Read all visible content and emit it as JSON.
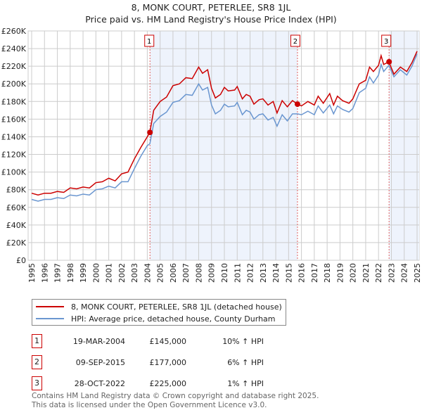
{
  "title": "8, MONK COURT, PETERLEE, SR8 1JL",
  "subtitle": "Price paid vs. HM Land Registry's House Price Index (HPI)",
  "chart_data": {
    "type": "line",
    "xlim": [
      1995,
      2025
    ],
    "ylim": [
      0,
      260000
    ],
    "x_ticks": [
      "1995",
      "1996",
      "1997",
      "1998",
      "1999",
      "2000",
      "2001",
      "2002",
      "2003",
      "2004",
      "2005",
      "2006",
      "2007",
      "2008",
      "2009",
      "2010",
      "2011",
      "2012",
      "2013",
      "2014",
      "2015",
      "2016",
      "2017",
      "2018",
      "2019",
      "2020",
      "2021",
      "2022",
      "2023",
      "2024",
      "2025"
    ],
    "y_ticks": [
      "£0",
      "£20K",
      "£40K",
      "£60K",
      "£80K",
      "£100K",
      "£120K",
      "£140K",
      "£160K",
      "£180K",
      "£200K",
      "£220K",
      "£240K",
      "£260K"
    ],
    "grid": true,
    "series": [
      {
        "name": "8, MONK COURT, PETERLEE, SR8 1JL (detached house)",
        "color": "#cc0000",
        "x": [
          1995,
          1995.5,
          1996,
          1996.5,
          1997,
          1997.5,
          1998,
          1998.5,
          1999,
          1999.5,
          2000,
          2000.5,
          2001,
          2001.5,
          2002,
          2002.5,
          2003,
          2003.5,
          2004,
          2004.2,
          2004.5,
          2005,
          2005.5,
          2006,
          2006.5,
          2007,
          2007.5,
          2008,
          2008.3,
          2008.7,
          2009,
          2009.3,
          2009.7,
          2010,
          2010.3,
          2010.8,
          2011,
          2011.4,
          2011.7,
          2012,
          2012.3,
          2012.7,
          2013,
          2013.4,
          2013.8,
          2014.1,
          2014.5,
          2014.9,
          2015.3,
          2015.7,
          2016,
          2016.5,
          2017,
          2017.3,
          2017.7,
          2018.2,
          2018.5,
          2018.8,
          2019.2,
          2019.7,
          2020,
          2020.5,
          2021,
          2021.3,
          2021.6,
          2022,
          2022.2,
          2022.4,
          2022.8,
          2023.2,
          2023.7,
          2024.2,
          2024.6,
          2025
        ],
        "y": [
          76,
          74,
          76,
          76,
          78,
          77,
          82,
          81,
          83,
          82,
          88,
          89,
          93,
          90,
          98,
          100,
          115,
          128,
          140,
          145,
          170,
          180,
          185,
          198,
          200,
          207,
          206,
          219,
          212,
          216,
          195,
          184,
          188,
          196,
          192,
          193,
          197,
          183,
          188,
          186,
          177,
          182,
          183,
          176,
          180,
          167,
          181,
          174,
          181,
          177,
          175,
          180,
          176,
          186,
          178,
          189,
          176,
          186,
          181,
          178,
          183,
          200,
          204,
          219,
          214,
          221,
          232,
          222,
          225,
          211,
          219,
          214,
          224,
          237
        ]
      },
      {
        "name": "HPI: Average price, detached house, County Durham",
        "color": "#6a96d0",
        "x": [
          1995,
          1995.5,
          1996,
          1996.5,
          1997,
          1997.5,
          1998,
          1998.5,
          1999,
          1999.5,
          2000,
          2000.5,
          2001,
          2001.5,
          2002,
          2002.5,
          2003,
          2003.5,
          2004,
          2004.2,
          2004.5,
          2005,
          2005.5,
          2006,
          2006.5,
          2007,
          2007.5,
          2008,
          2008.3,
          2008.7,
          2009,
          2009.3,
          2009.7,
          2010,
          2010.3,
          2010.8,
          2011,
          2011.4,
          2011.7,
          2012,
          2012.3,
          2012.7,
          2013,
          2013.4,
          2013.8,
          2014.1,
          2014.5,
          2014.9,
          2015.3,
          2015.7,
          2016,
          2016.5,
          2017,
          2017.3,
          2017.7,
          2018.2,
          2018.5,
          2018.8,
          2019.2,
          2019.7,
          2020,
          2020.5,
          2021,
          2021.3,
          2021.6,
          2022,
          2022.2,
          2022.4,
          2022.8,
          2023.2,
          2023.7,
          2024.2,
          2024.6,
          2025
        ],
        "y": [
          69,
          67,
          69,
          69,
          71,
          70,
          74,
          73,
          75,
          74,
          80,
          81,
          84,
          82,
          89,
          89,
          104,
          118,
          130,
          132,
          155,
          163,
          168,
          179,
          181,
          188,
          187,
          200,
          193,
          196,
          176,
          166,
          170,
          177,
          174,
          175,
          179,
          165,
          170,
          168,
          160,
          165,
          166,
          159,
          162,
          152,
          165,
          158,
          166,
          166,
          165,
          169,
          165,
          175,
          167,
          176,
          166,
          175,
          171,
          168,
          172,
          190,
          195,
          208,
          201,
          210,
          222,
          214,
          221,
          208,
          216,
          210,
          220,
          234
        ]
      }
    ],
    "sales": [
      {
        "label": "1",
        "x": 2004.21,
        "y": 145000,
        "date": "19-MAR-2004",
        "price": "£145,000",
        "hpi": "10% ↑ HPI"
      },
      {
        "label": "2",
        "x": 2015.69,
        "y": 177000,
        "date": "09-SEP-2015",
        "price": "£177,000",
        "hpi": "6% ↑ HPI"
      },
      {
        "label": "3",
        "x": 2022.82,
        "y": 225000,
        "date": "28-OCT-2022",
        "price": "£225,000",
        "hpi": "1% ↑ HPI"
      }
    ]
  },
  "footer": [
    "Contains HM Land Registry data © Crown copyright and database right 2025.",
    "This data is licensed under the Open Government Licence v3.0."
  ]
}
